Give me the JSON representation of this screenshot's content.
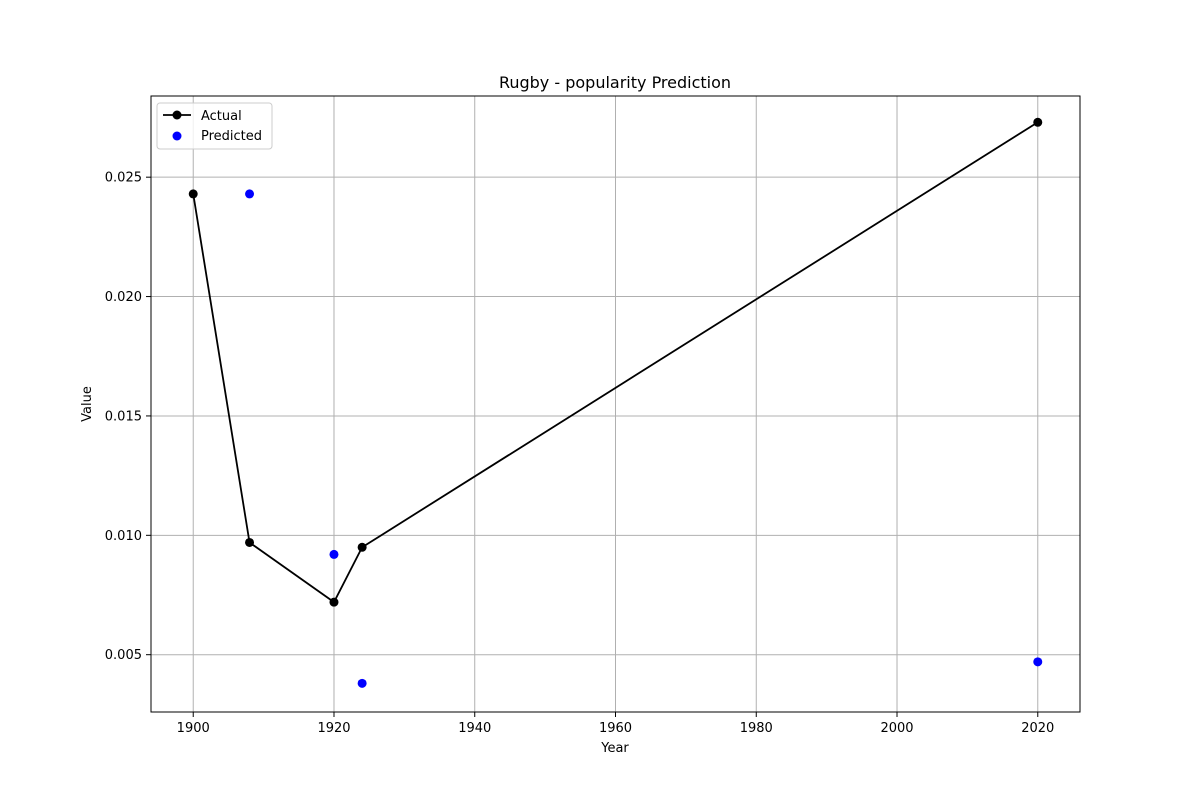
{
  "chart_data": {
    "type": "line",
    "title": "Rugby - popularity Prediction",
    "xlabel": "Year",
    "ylabel": "Value",
    "xlim": [
      1894,
      2026
    ],
    "ylim": [
      0.0026,
      0.0284
    ],
    "xticks": [
      1900,
      1920,
      1940,
      1960,
      1980,
      2000,
      2020
    ],
    "yticks": [
      0.005,
      0.01,
      0.015,
      0.02,
      0.025
    ],
    "ytick_labels": [
      "0.005",
      "0.010",
      "0.015",
      "0.020",
      "0.025"
    ],
    "grid": true,
    "legend_position": "upper-left",
    "series": [
      {
        "name": "Actual",
        "kind": "line-marker",
        "color": "#000000",
        "x": [
          1900,
          1908,
          1920,
          1924,
          2020
        ],
        "y": [
          0.0243,
          0.0097,
          0.0072,
          0.0095,
          0.0273
        ]
      },
      {
        "name": "Predicted",
        "kind": "scatter",
        "color": "#0000ff",
        "x": [
          1908,
          1920,
          1924,
          2020
        ],
        "y": [
          0.0243,
          0.0092,
          0.0038,
          0.0047
        ]
      }
    ]
  }
}
